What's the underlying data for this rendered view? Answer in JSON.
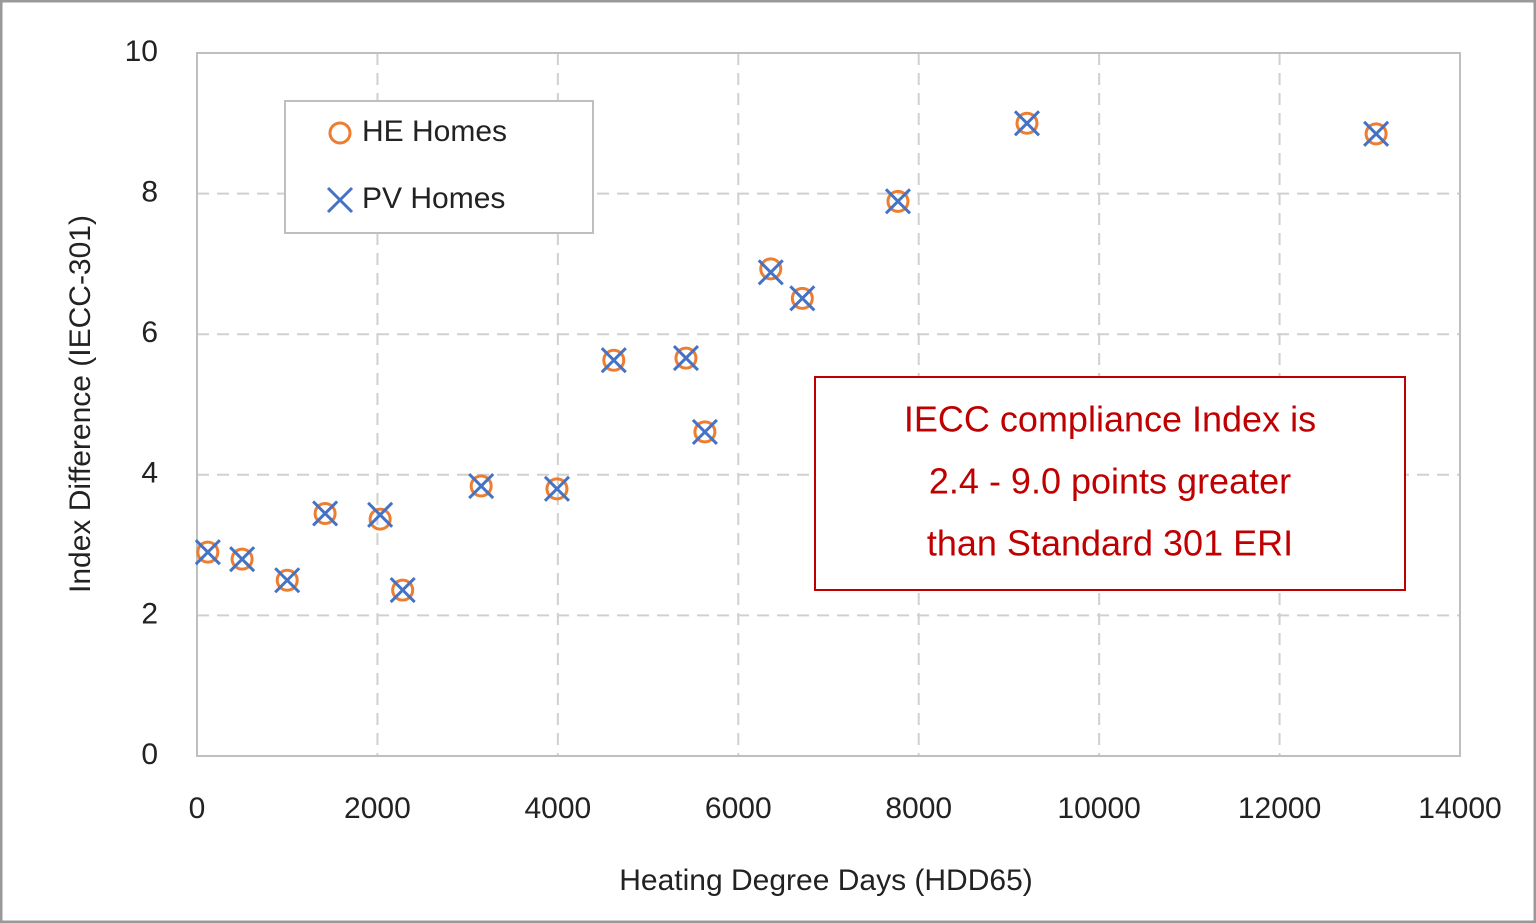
{
  "chart_data": {
    "type": "scatter",
    "x_label": "Heating Degree Days (HDD65)",
    "y_label": "Index Difference  (IECC-301)",
    "x": [
      120,
      500,
      1000,
      1420,
      2030,
      2280,
      3150,
      3990,
      4620,
      5420,
      5630,
      6360,
      6710,
      7770,
      9200,
      13070
    ],
    "series": [
      {
        "name": "HE Homes",
        "color": "#ed7d31",
        "marker": "circle",
        "values": [
          2.9,
          2.8,
          2.5,
          3.45,
          3.37,
          2.36,
          3.84,
          3.8,
          5.63,
          5.66,
          4.61,
          6.93,
          6.51,
          7.89,
          9.0,
          8.85
        ]
      },
      {
        "name": "PV Homes",
        "color": "#4472c4",
        "marker": "x",
        "values": [
          2.9,
          2.8,
          2.5,
          3.45,
          3.43,
          2.36,
          3.84,
          3.8,
          5.63,
          5.66,
          4.61,
          6.88,
          6.51,
          7.89,
          9.0,
          8.85
        ]
      }
    ],
    "xlim": [
      0,
      14000
    ],
    "xticks": [
      0,
      2000,
      4000,
      6000,
      8000,
      10000,
      12000,
      14000
    ],
    "ylim": [
      0,
      10
    ],
    "yticks": [
      0,
      2,
      4,
      6,
      8,
      10
    ],
    "grid": true,
    "legend": "upper left",
    "annotation": [
      "IECC compliance Index is",
      "2.4 - 9.0 points greater",
      "than Standard 301 ERI"
    ],
    "annotation_color": "#c00000"
  }
}
